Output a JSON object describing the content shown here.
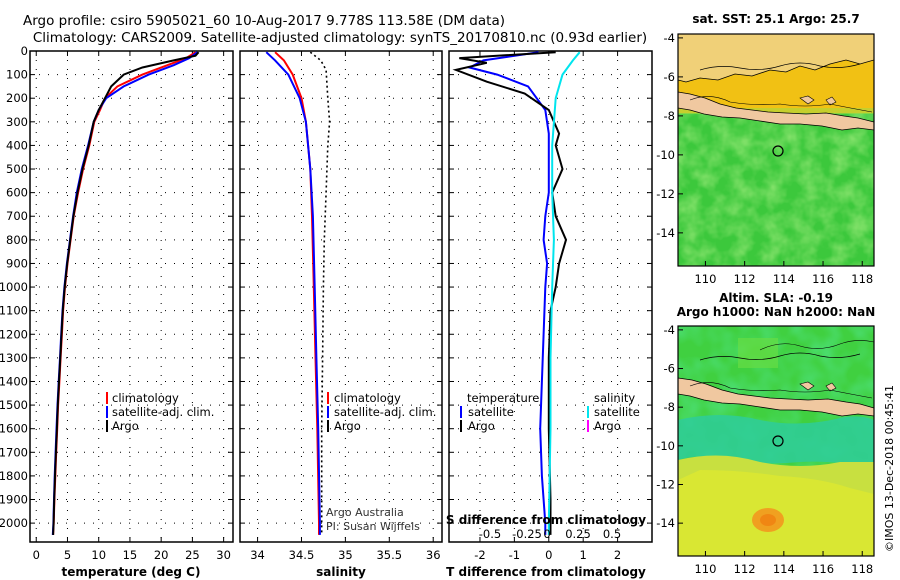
{
  "header": {
    "title_line1": "Argo profile: csiro 5905021_60 10-Aug-2017 9.778S 113.58E (DM data)",
    "title_line2": "Climatology: CARS2009. Satellite-adjusted climatology: synTS_20170810.nc (0.93d earlier)"
  },
  "colors": {
    "climatology": "#ff0000",
    "satellite": "#0000ff",
    "argo": "#000000",
    "satellite_salinity": "#00e5ee",
    "argo_salinity": "#ff00ff"
  },
  "chart_data": [
    {
      "type": "line",
      "name": "temperature-profile",
      "xlabel": "temperature (deg C)",
      "xlim": [
        -1,
        31.5
      ],
      "ylim": [
        2080,
        0
      ],
      "x_ticks": [
        0,
        5,
        10,
        15,
        20,
        25,
        30
      ],
      "y_ticks": [
        0,
        100,
        200,
        300,
        400,
        500,
        600,
        700,
        800,
        900,
        1000,
        1100,
        1200,
        1300,
        1400,
        1500,
        1600,
        1700,
        1800,
        1900,
        2000
      ],
      "grid": true,
      "legend": [
        "climatology",
        "satellite-adj. clim.",
        "Argo"
      ],
      "series": [
        {
          "name": "climatology",
          "color": "#ff0000",
          "points": [
            [
              25.5,
              5
            ],
            [
              24,
              30
            ],
            [
              21,
              60
            ],
            [
              17,
              100
            ],
            [
              13,
              150
            ],
            [
              11,
              200
            ],
            [
              10.2,
              250
            ],
            [
              9.3,
              300
            ],
            [
              8.5,
              400
            ],
            [
              7.5,
              500
            ],
            [
              6.7,
              600
            ],
            [
              6,
              700
            ],
            [
              5.5,
              800
            ],
            [
              5,
              900
            ],
            [
              4.6,
              1000
            ],
            [
              4.3,
              1100
            ],
            [
              4.1,
              1200
            ],
            [
              3.9,
              1300
            ],
            [
              3.7,
              1400
            ],
            [
              3.5,
              1500
            ],
            [
              3.35,
              1600
            ],
            [
              3.2,
              1700
            ],
            [
              3.05,
              1800
            ],
            [
              2.9,
              1900
            ],
            [
              2.8,
              2000
            ],
            [
              2.7,
              2050
            ]
          ]
        },
        {
          "name": "satellite-adj. clim.",
          "color": "#0000ff",
          "points": [
            [
              25.8,
              5
            ],
            [
              24.5,
              30
            ],
            [
              22,
              60
            ],
            [
              18,
              100
            ],
            [
              14,
              150
            ],
            [
              11.2,
              200
            ],
            [
              10,
              250
            ],
            [
              9.2,
              300
            ],
            [
              8.3,
              400
            ],
            [
              7.3,
              500
            ],
            [
              6.5,
              600
            ],
            [
              5.9,
              700
            ],
            [
              5.4,
              800
            ],
            [
              4.9,
              900
            ],
            [
              4.5,
              1000
            ],
            [
              4.2,
              1100
            ],
            [
              4,
              1200
            ],
            [
              3.8,
              1300
            ],
            [
              3.6,
              1400
            ],
            [
              3.4,
              1500
            ],
            [
              3.25,
              1600
            ],
            [
              3.1,
              1700
            ],
            [
              2.95,
              1800
            ],
            [
              2.85,
              1900
            ],
            [
              2.75,
              2000
            ],
            [
              2.65,
              2050
            ]
          ]
        },
        {
          "name": "Argo",
          "color": "#000000",
          "points": [
            [
              26,
              5
            ],
            [
              25.5,
              20
            ],
            [
              22,
              40
            ],
            [
              17,
              70
            ],
            [
              14,
              100
            ],
            [
              12,
              150
            ],
            [
              11,
              200
            ],
            [
              10,
              250
            ],
            [
              9.2,
              300
            ],
            [
              8.4,
              400
            ],
            [
              7.4,
              500
            ],
            [
              6.6,
              600
            ],
            [
              5.95,
              700
            ],
            [
              5.45,
              800
            ],
            [
              4.95,
              900
            ],
            [
              4.55,
              1000
            ],
            [
              4.25,
              1100
            ],
            [
              4.05,
              1200
            ],
            [
              3.85,
              1300
            ],
            [
              3.65,
              1400
            ],
            [
              3.45,
              1500
            ],
            [
              3.3,
              1600
            ],
            [
              3.15,
              1700
            ],
            [
              3,
              1800
            ],
            [
              2.88,
              1900
            ],
            [
              2.78,
              2000
            ],
            [
              2.7,
              2050
            ]
          ]
        }
      ]
    },
    {
      "type": "line",
      "name": "salinity-profile",
      "xlabel": "salinity",
      "xlim": [
        33.8,
        36.1
      ],
      "ylim": [
        2080,
        0
      ],
      "x_ticks": [
        34,
        34.5,
        35,
        35.5,
        36
      ],
      "grid": true,
      "legend": [
        "climatology",
        "satellite-adj. clim.",
        "Argo"
      ],
      "annotation": [
        "Argo Australia",
        "PI: Susan Wijffels"
      ],
      "series": [
        {
          "name": "climatology",
          "color": "#ff0000",
          "points": [
            [
              34.2,
              5
            ],
            [
              34.3,
              40
            ],
            [
              34.4,
              100
            ],
            [
              34.5,
              200
            ],
            [
              34.55,
              300
            ],
            [
              34.6,
              500
            ],
            [
              34.62,
              700
            ],
            [
              34.64,
              1000
            ],
            [
              34.66,
              1300
            ],
            [
              34.68,
              1600
            ],
            [
              34.7,
              2000
            ],
            [
              34.7,
              2050
            ]
          ]
        },
        {
          "name": "satellite-adj. clim.",
          "color": "#0000ff",
          "points": [
            [
              34.1,
              5
            ],
            [
              34.2,
              40
            ],
            [
              34.35,
              100
            ],
            [
              34.48,
              200
            ],
            [
              34.55,
              300
            ],
            [
              34.6,
              500
            ],
            [
              34.63,
              700
            ],
            [
              34.65,
              1000
            ],
            [
              34.67,
              1300
            ],
            [
              34.69,
              1600
            ],
            [
              34.71,
              2000
            ],
            [
              34.71,
              2050
            ]
          ]
        },
        {
          "name": "Argo",
          "color": "#000000",
          "dashed": true,
          "points": [
            [
              34.6,
              5
            ],
            [
              34.72,
              40
            ],
            [
              34.78,
              80
            ],
            [
              34.8,
              200
            ],
            [
              34.82,
              300
            ],
            [
              34.8,
              400
            ],
            [
              34.78,
              600
            ],
            [
              34.76,
              800
            ],
            [
              34.75,
              1000
            ],
            [
              34.74,
              1300
            ],
            [
              34.73,
              1600
            ],
            [
              34.73,
              2000
            ],
            [
              34.73,
              2050
            ]
          ]
        }
      ]
    },
    {
      "type": "line",
      "name": "difference-profile",
      "xlabel": "T difference from climatology",
      "xlabel_top": "S difference from climatology",
      "xlim": [
        -2.9,
        3.0
      ],
      "ylim": [
        2080,
        0
      ],
      "x_ticks": [
        -2,
        -1,
        0,
        1,
        2
      ],
      "x_ticks_top": [
        "-0.5",
        "-0.25",
        "0",
        "0.25",
        "0.5"
      ],
      "grid": true,
      "legend_left_title": "temperature",
      "legend_right_title": "salinity",
      "legend_left": [
        "satellite",
        "Argo"
      ],
      "legend_right": [
        "satellite",
        "Argo"
      ],
      "series": [
        {
          "name": "T satellite",
          "color": "#0000ff",
          "points": [
            [
              -0.3,
              5
            ],
            [
              -1.9,
              40
            ],
            [
              -2.3,
              70
            ],
            [
              -1.5,
              100
            ],
            [
              -0.6,
              150
            ],
            [
              -0.1,
              250
            ],
            [
              0,
              350
            ],
            [
              0,
              600
            ],
            [
              -0.1,
              700
            ],
            [
              -0.15,
              800
            ],
            [
              -0.05,
              900
            ],
            [
              -0.1,
              1000
            ],
            [
              -0.15,
              1200
            ],
            [
              -0.2,
              1400
            ],
            [
              -0.25,
              1600
            ],
            [
              -0.2,
              1800
            ],
            [
              -0.1,
              2000
            ],
            [
              -0.1,
              2050
            ]
          ]
        },
        {
          "name": "T Argo",
          "color": "#000000",
          "points": [
            [
              0.2,
              5
            ],
            [
              -2.6,
              30
            ],
            [
              -1.8,
              50
            ],
            [
              -2.7,
              80
            ],
            [
              -1.8,
              130
            ],
            [
              -0.7,
              180
            ],
            [
              0,
              250
            ],
            [
              0.3,
              350
            ],
            [
              0.2,
              400
            ],
            [
              0.4,
              500
            ],
            [
              0.1,
              600
            ],
            [
              0.2,
              700
            ],
            [
              0.5,
              800
            ],
            [
              0.3,
              900
            ],
            [
              0.2,
              1000
            ],
            [
              0.05,
              1100
            ],
            [
              0,
              1300
            ],
            [
              0,
              1600
            ],
            [
              0.05,
              1900
            ],
            [
              0.05,
              2050
            ]
          ]
        },
        {
          "name": "S satellite",
          "color": "#00e5ee",
          "points": [
            [
              0.9,
              5
            ],
            [
              0.7,
              40
            ],
            [
              0.4,
              100
            ],
            [
              0.2,
              200
            ],
            [
              0.1,
              400
            ],
            [
              0.1,
              600
            ],
            [
              0.15,
              800
            ],
            [
              0.1,
              1000
            ],
            [
              0.05,
              1300
            ],
            [
              0.05,
              1600
            ],
            [
              0,
              2000
            ],
            [
              0,
              2050
            ]
          ]
        },
        {
          "name": "S Argo",
          "color": "#ff00ff",
          "points": []
        }
      ]
    }
  ],
  "maps": [
    {
      "title": "sat. SST: 25.1 Argo: 25.7",
      "lon_ticks": [
        110,
        112,
        114,
        116,
        118
      ],
      "lat_ticks": [
        -4,
        -6,
        -8,
        -10,
        -12,
        -14
      ],
      "lon_range": [
        108.6,
        118.6
      ],
      "lat_range": [
        -3.8,
        -15.7
      ],
      "marker": [
        113.58,
        -9.778
      ]
    },
    {
      "title": "Altim. SLA: -0.19",
      "subtitle": "Argo h1000: NaN h2000: NaN",
      "lon_ticks": [
        110,
        112,
        114,
        116,
        118
      ],
      "lat_ticks": [
        -4,
        -6,
        -8,
        -10,
        -12,
        -14
      ],
      "lon_range": [
        108.6,
        118.6
      ],
      "lat_range": [
        -3.8,
        -15.7
      ],
      "marker": [
        113.58,
        -9.778
      ]
    }
  ],
  "footer": {
    "credit": "©IMOS 13-Dec-2018 00:45:41"
  }
}
